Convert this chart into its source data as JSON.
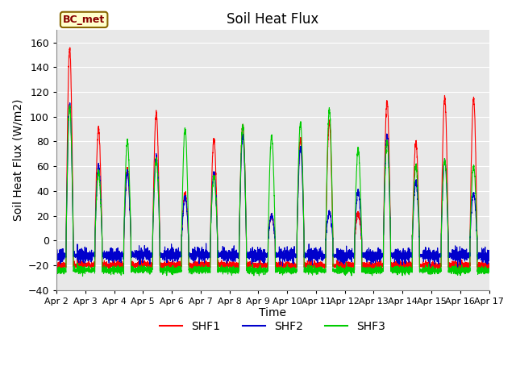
{
  "title": "Soil Heat Flux",
  "ylabel": "Soil Heat Flux (W/m2)",
  "xlabel": "Time",
  "ylim": [
    -40,
    170
  ],
  "yticks": [
    -40,
    -20,
    0,
    20,
    40,
    60,
    80,
    100,
    120,
    140,
    160
  ],
  "x_tick_labels": [
    "Apr 2",
    "Apr 3",
    "Apr 4",
    "Apr 5",
    "Apr 6",
    "Apr 7",
    "Apr 8",
    "Apr 9",
    "Apr 10",
    "Apr 11",
    "Apr 12",
    "Apr 13",
    "Apr 14",
    "Apr 15",
    "Apr 16",
    "Apr 17"
  ],
  "line_colors": [
    "#ff0000",
    "#0000cc",
    "#00cc00"
  ],
  "line_labels": [
    "SHF1",
    "SHF2",
    "SHF3"
  ],
  "annotation_text": "BC_met",
  "bg_color": "#e8e8e8",
  "fig_bg": "#ffffff",
  "title_fontsize": 12,
  "label_fontsize": 10,
  "legend_fontsize": 10,
  "day_peaks_shf1": [
    155,
    90,
    57,
    103,
    38,
    82,
    93,
    20,
    82,
    95,
    22,
    112,
    79,
    116,
    115
  ],
  "day_peaks_shf2": [
    110,
    60,
    55,
    68,
    35,
    55,
    85,
    20,
    75,
    22,
    40,
    85,
    47,
    65,
    38
  ],
  "day_peaks_shf3": [
    108,
    55,
    80,
    65,
    90,
    52,
    93,
    84,
    95,
    105,
    74,
    80,
    60,
    65,
    60
  ],
  "night_shf1": -20,
  "night_shf2": -12,
  "night_shf3": -24,
  "n_days": 15,
  "samples_per_day": 288
}
